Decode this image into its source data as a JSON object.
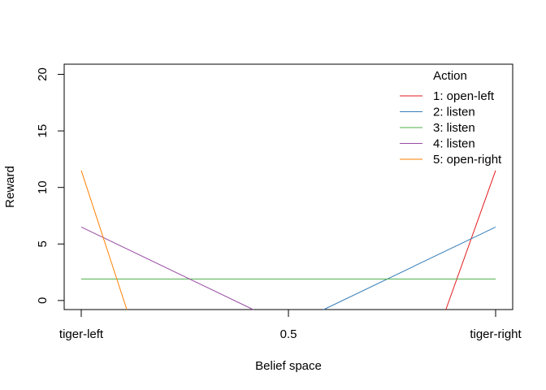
{
  "chart_data": {
    "type": "line",
    "xlabel": "Belief space",
    "ylabel": "Reward",
    "x_ticks": [
      {
        "value": 0,
        "label": "tiger-left"
      },
      {
        "value": 0.5,
        "label": "0.5"
      },
      {
        "value": 1,
        "label": "tiger-right"
      }
    ],
    "y_ticks": [
      0,
      5,
      10,
      15,
      20
    ],
    "xlim": [
      0,
      1
    ],
    "ylim": [
      -0.8,
      20.9
    ],
    "grid": false,
    "legend": {
      "title": "Action",
      "position": "top-right"
    },
    "series": [
      {
        "name": "1: open-left",
        "color": "#E41A1C",
        "x": [
          0.88,
          1.0
        ],
        "y": [
          -0.8,
          11.5
        ]
      },
      {
        "name": "2: listen",
        "color": "#377EB8",
        "x": [
          0.585,
          1.0
        ],
        "y": [
          -0.8,
          6.5
        ]
      },
      {
        "name": "3: listen",
        "color": "#4DAF4A",
        "x": [
          0.0,
          1.0
        ],
        "y": [
          1.9,
          1.9
        ]
      },
      {
        "name": "4: listen",
        "color": "#984EA3",
        "x": [
          0.0,
          0.415
        ],
        "y": [
          6.5,
          -0.8
        ]
      },
      {
        "name": "5: open-right",
        "color": "#FF7F00",
        "x": [
          0.0,
          0.11
        ],
        "y": [
          11.5,
          -0.8
        ]
      }
    ]
  }
}
